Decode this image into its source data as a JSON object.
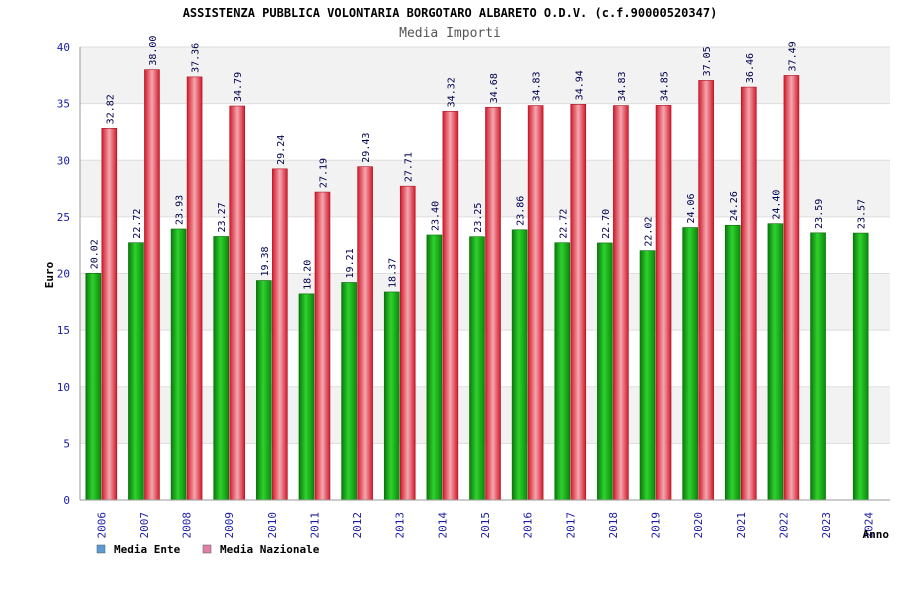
{
  "chart_data": {
    "type": "bar",
    "title": "ASSISTENZA PUBBLICA VOLONTARIA BORGOTARO ALBARETO O.D.V. (c.f.90000520347)",
    "subtitle": "Media Importi",
    "xlabel": "Anno",
    "ylabel": "Euro",
    "ylim": [
      0,
      40
    ],
    "yticks": [
      0,
      5,
      10,
      15,
      20,
      25,
      30,
      35,
      40
    ],
    "grid": true,
    "legend_position": "bottom-left",
    "categories": [
      "2006",
      "2007",
      "2008",
      "2009",
      "2010",
      "2011",
      "2012",
      "2013",
      "2014",
      "2015",
      "2016",
      "2017",
      "2018",
      "2019",
      "2020",
      "2021",
      "2022",
      "2023",
      "2024"
    ],
    "series": [
      {
        "name": "Media Ente",
        "legend_color": "#5b9bd5",
        "bar_color": "#16b316",
        "values": [
          20.02,
          22.72,
          23.93,
          23.27,
          19.38,
          18.2,
          19.21,
          18.37,
          23.4,
          23.25,
          23.86,
          22.72,
          22.7,
          22.02,
          24.06,
          24.26,
          24.4,
          23.59,
          23.57
        ],
        "labels": [
          "20.02",
          "22.72",
          "23.93",
          "23.27",
          "19.38",
          "18.20",
          "19.21",
          "18.37",
          "23.40",
          "23.25",
          "23.86",
          "22.72",
          "22.70",
          "22.02",
          "24.06",
          "24.26",
          "24.40",
          "23.59",
          "23.57"
        ]
      },
      {
        "name": "Media Nazionale",
        "legend_color": "#e080a8",
        "bar_color": "#e8303e",
        "values": [
          32.82,
          38.0,
          37.36,
          34.79,
          29.24,
          27.19,
          29.43,
          27.71,
          34.32,
          34.68,
          34.83,
          34.94,
          34.83,
          34.85,
          37.05,
          36.46,
          37.49,
          null,
          null
        ],
        "labels": [
          "32.82",
          "38.00",
          "37.36",
          "34.79",
          "29.24",
          "27.19",
          "29.43",
          "27.71",
          "34.32",
          "34.68",
          "34.83",
          "34.94",
          "34.83",
          "34.85",
          "37.05",
          "36.46",
          "37.49",
          "",
          ""
        ]
      }
    ]
  }
}
